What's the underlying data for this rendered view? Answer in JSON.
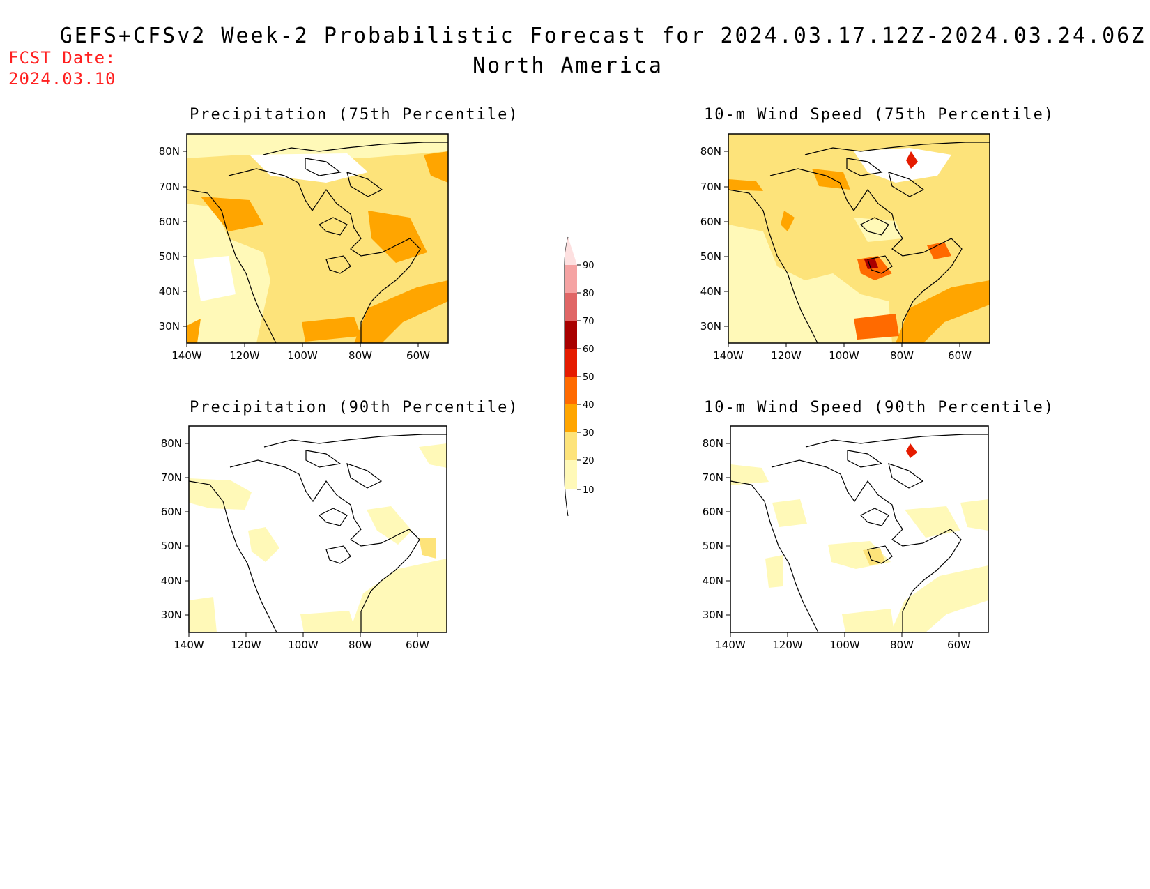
{
  "header": {
    "title": "GEFS+CFSv2 Week-2 Probabilistic Forecast for 2024.03.17.12Z-2024.03.24.06Z",
    "subtitle": "North America",
    "fcst_label": "FCST Date:",
    "fcst_date": "2024.03.10"
  },
  "colors": {
    "c10": "#fff9b8",
    "c20": "#fde37a",
    "c30": "#ffa500",
    "c40": "#ff6a00",
    "c50": "#e51b00",
    "c60": "#a80000",
    "c70": "#e06666",
    "c80": "#f5a3a3",
    "c90": "#fde0e0"
  },
  "panels": [
    {
      "title": "Precipitation (75th Percentile)",
      "lat_ticks": [
        "80N",
        "70N",
        "60N",
        "50N",
        "40N",
        "30N"
      ],
      "lon_ticks": [
        "140W",
        "120W",
        "100W",
        "80W",
        "60W"
      ]
    },
    {
      "title": "10-m Wind Speed (75th Percentile)",
      "lat_ticks": [
        "80N",
        "70N",
        "60N",
        "50N",
        "40N",
        "30N"
      ],
      "lon_ticks": [
        "140W",
        "120W",
        "100W",
        "80W",
        "60W"
      ]
    },
    {
      "title": "Precipitation (90th Percentile)",
      "lat_ticks": [
        "80N",
        "70N",
        "60N",
        "50N",
        "40N",
        "30N"
      ],
      "lon_ticks": [
        "140W",
        "120W",
        "100W",
        "80W",
        "60W"
      ]
    },
    {
      "title": "10-m Wind Speed (90th Percentile)",
      "lat_ticks": [
        "80N",
        "70N",
        "60N",
        "50N",
        "40N",
        "30N"
      ],
      "lon_ticks": [
        "140W",
        "120W",
        "100W",
        "80W",
        "60W"
      ]
    }
  ],
  "legend": {
    "levels": [
      "10",
      "20",
      "30",
      "40",
      "50",
      "60",
      "70",
      "80",
      "90"
    ]
  }
}
